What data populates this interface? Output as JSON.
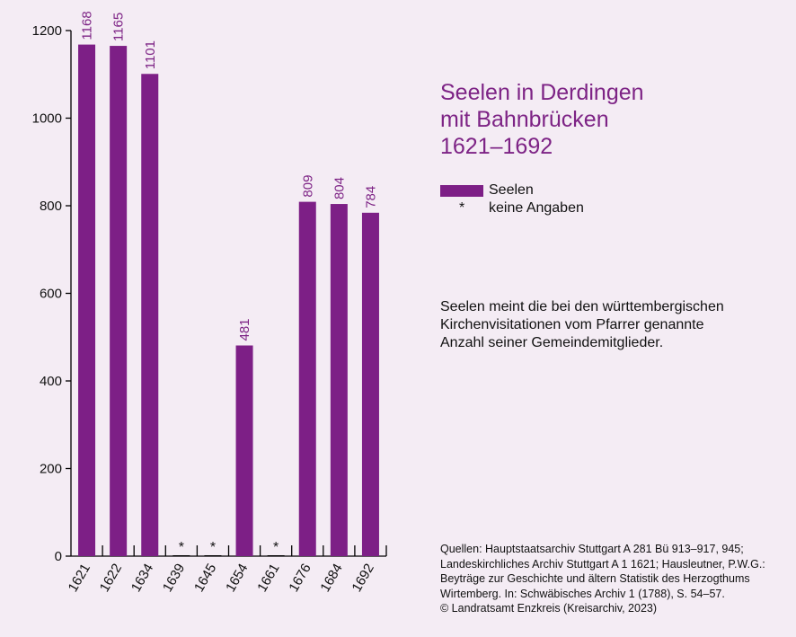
{
  "chart_data": {
    "type": "bar",
    "title": [
      "Seelen in Derdingen",
      "mit Bahnbrücken",
      "1621–1692"
    ],
    "categories": [
      "1621",
      "1622",
      "1634",
      "1639",
      "1645",
      "1654",
      "1661",
      "1676",
      "1684",
      "1692"
    ],
    "series": [
      {
        "name": "Seelen",
        "values": [
          1168,
          1165,
          1101,
          null,
          null,
          481,
          null,
          809,
          804,
          784
        ],
        "labels": [
          "1168",
          "1165",
          "1101",
          "*",
          "*",
          "481",
          "*",
          "809",
          "804",
          "784"
        ]
      }
    ],
    "ylim": [
      0,
      1200
    ],
    "yticks": [
      0,
      200,
      400,
      600,
      800,
      1000,
      1200
    ],
    "grid": false,
    "bar_color": "#7d1f86",
    "label_color": "#7d2385",
    "legend_placement": "right",
    "legend": [
      {
        "symbol": "bar",
        "label": "Seelen"
      },
      {
        "symbol": "*",
        "label": "keine Angaben"
      }
    ]
  },
  "note": [
    "Seelen meint die bei den württembergischen",
    "Kirchenvisitationen vom Pfarrer genannte",
    "Anzahl seiner Gemeindemitglieder."
  ],
  "source": [
    "Quellen: Hauptstaatsarchiv Stuttgart A 281 Bü 913–917, 945;",
    "Landeskirchliches Archiv Stuttgart A 1 1621; Hausleutner, P.W.G.:",
    "Beyträge zur Geschichte und ältern Statistik des Herzogthums",
    "Wirtemberg. In: Schwäbisches Archiv 1 (1788), S. 54–57.",
    "© Landratsamt Enzkreis (Kreisarchiv, 2023)"
  ]
}
